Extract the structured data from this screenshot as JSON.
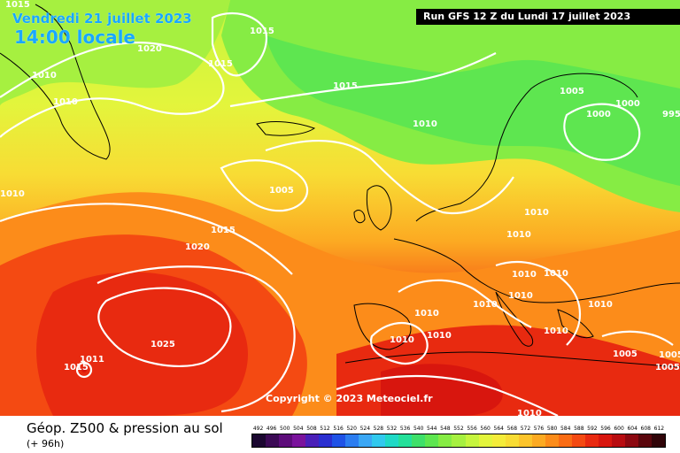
{
  "header": {
    "date": "Vendredi 21 juillet 2023",
    "time": "14:00 locale",
    "run": "Run GFS 12 Z du Lundi 17 juillet 2023"
  },
  "copyright": "Copyright © 2023 Meteociel.fr",
  "parameter": {
    "title": "Géop. Z500 & pression au sol",
    "subtitle": "(+ 96h)"
  },
  "scale": {
    "labels": [
      "492",
      "496",
      "500",
      "504",
      "508",
      "512",
      "516",
      "520",
      "524",
      "528",
      "532",
      "536",
      "540",
      "544",
      "548",
      "552",
      "556",
      "560",
      "564",
      "568",
      "572",
      "576",
      "580",
      "584",
      "588",
      "592",
      "596",
      "600",
      "604",
      "608",
      "612"
    ],
    "colors": [
      "#1b0730",
      "#3b0a55",
      "#5d0c7a",
      "#7a139c",
      "#4a1fb8",
      "#2a2fd0",
      "#1f52e6",
      "#2c7df0",
      "#3aa7f5",
      "#31c9ee",
      "#1fd9c6",
      "#24e09a",
      "#3ee06a",
      "#5ee650",
      "#86ec44",
      "#a6f040",
      "#c6f53e",
      "#e3f53c",
      "#f4ec3a",
      "#f8dc34",
      "#fcc42b",
      "#fcaa22",
      "#fc8c1a",
      "#fa6c14",
      "#f44a12",
      "#e82a10",
      "#d8160e",
      "#b80c10",
      "#8c0810",
      "#5a060c",
      "#300408"
    ]
  },
  "isobars": {
    "labels": [
      "1015",
      "1020",
      "1015",
      "1015",
      "1010",
      "1010",
      "1015",
      "1010",
      "1005",
      "1000",
      "1000",
      "995",
      "1010",
      "1005",
      "1015",
      "1020",
      "1010",
      "1010",
      "1010",
      "1010",
      "1010",
      "1010",
      "1010",
      "1010",
      "1010",
      "1025",
      "1015",
      "1011",
      "1005",
      "1010",
      "1010",
      "1005",
      "1005",
      "1010"
    ]
  }
}
